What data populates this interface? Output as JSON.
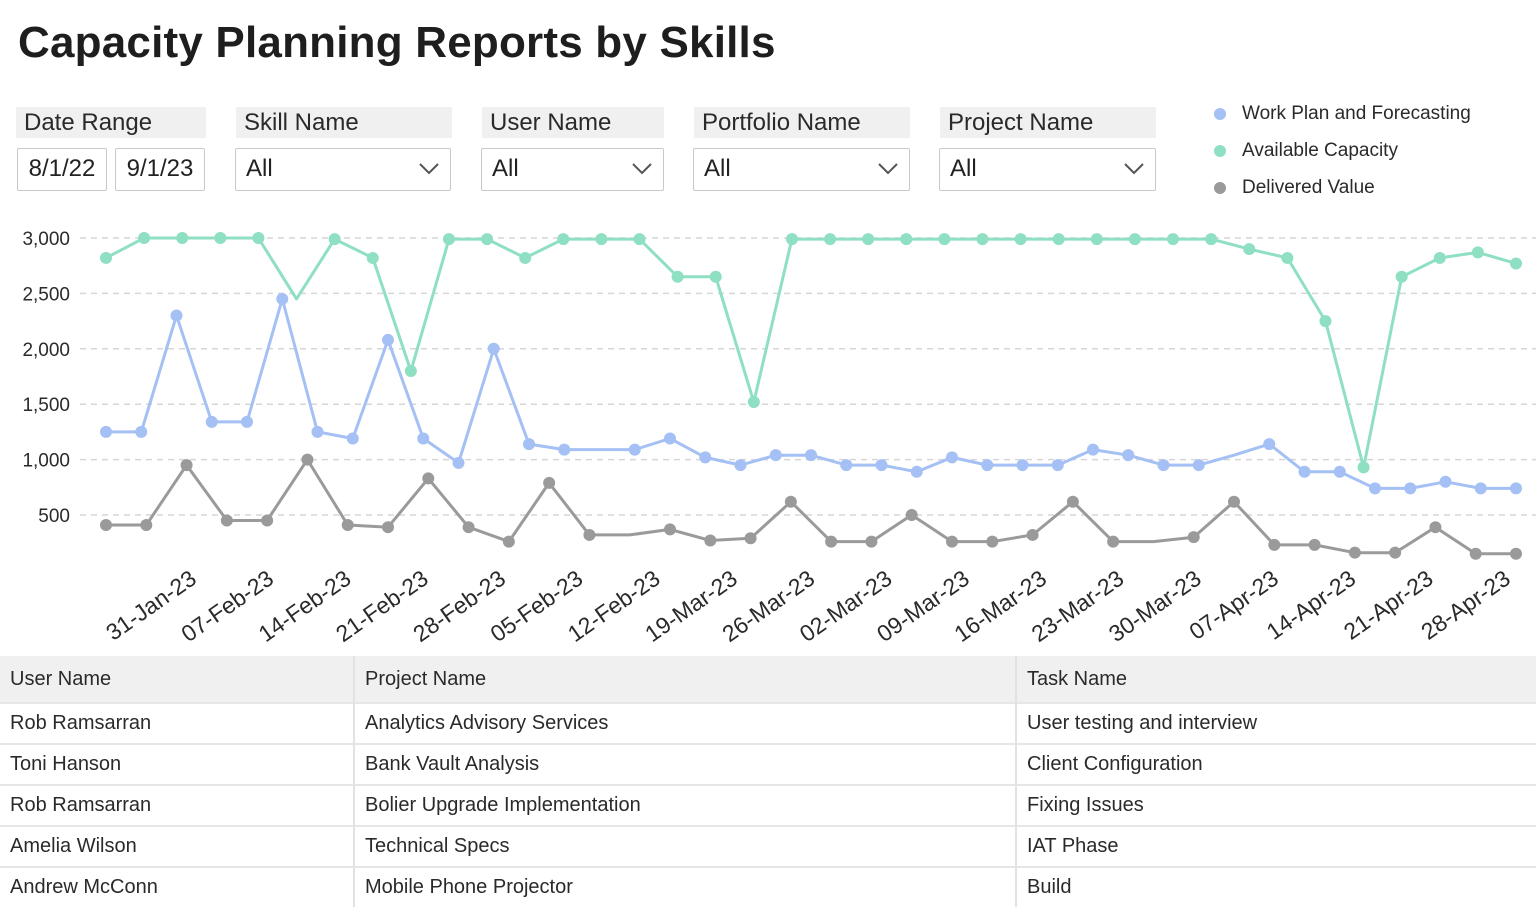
{
  "title": "Capacity Planning Reports by Skills",
  "filters": {
    "date_range": {
      "label": "Date Range",
      "start": "8/1/22",
      "end": "9/1/23"
    },
    "skill_name": {
      "label": "Skill Name",
      "value": "All"
    },
    "user_name": {
      "label": "User Name",
      "value": "All"
    },
    "portfolio_name": {
      "label": "Portfolio Name",
      "value": "All"
    },
    "project_name": {
      "label": "Project Name",
      "value": "All"
    }
  },
  "legend": [
    {
      "label": "Work Plan and Forecasting",
      "color": "#a4c0f4"
    },
    {
      "label": "Available Capacity",
      "color": "#8fdfc3"
    },
    {
      "label": "Delivered Value",
      "color": "#9a9a9a"
    }
  ],
  "chart_data": {
    "type": "line",
    "y_ticks": [
      "3,000",
      "2,500",
      "2,000",
      "1,500",
      "1,000",
      "500"
    ],
    "y_tick_values": [
      3000,
      2500,
      2000,
      1500,
      1000,
      500
    ],
    "ylim": [
      0,
      3000
    ],
    "grid": "horizontal-dashed",
    "x_tick_labels": [
      "31-Jan-23",
      "07-Feb-23",
      "14-Feb-23",
      "21-Feb-23",
      "28-Feb-23",
      "05-Feb-23",
      "12-Feb-23",
      "19-Mar-23",
      "26-Mar-23",
      "02-Mar-23",
      "09-Mar-23",
      "16-Mar-23",
      "23-Mar-23",
      "30-Mar-23",
      "07-Apr-23",
      "14-Apr-23",
      "21-Apr-23",
      "28-Apr-23"
    ],
    "series": [
      {
        "name": "Available Capacity",
        "color": "#8fdfc3",
        "points": [
          [
            0,
            2820,
            1
          ],
          [
            1,
            3000,
            1
          ],
          [
            2,
            3000,
            1
          ],
          [
            3,
            3000,
            1
          ],
          [
            4,
            3000,
            1
          ],
          [
            5,
            2450,
            0
          ],
          [
            6,
            2990,
            1
          ],
          [
            7,
            2820,
            1
          ],
          [
            8,
            1800,
            1
          ],
          [
            9,
            2990,
            1
          ],
          [
            10,
            2990,
            1
          ],
          [
            11,
            2820,
            1
          ],
          [
            12,
            2990,
            1
          ],
          [
            13,
            2990,
            1
          ],
          [
            14,
            2990,
            1
          ],
          [
            15,
            2650,
            1
          ],
          [
            16,
            2650,
            1
          ],
          [
            17,
            1520,
            1
          ],
          [
            18,
            2990,
            1
          ],
          [
            19,
            2990,
            1
          ],
          [
            20,
            2990,
            1
          ],
          [
            21,
            2990,
            1
          ],
          [
            22,
            2990,
            1
          ],
          [
            23,
            2990,
            1
          ],
          [
            24,
            2990,
            1
          ],
          [
            25,
            2990,
            1
          ],
          [
            26,
            2990,
            1
          ],
          [
            27,
            2990,
            1
          ],
          [
            28,
            2990,
            1
          ],
          [
            29,
            2990,
            1
          ],
          [
            30,
            2900,
            1
          ],
          [
            31,
            2820,
            1
          ],
          [
            32,
            2250,
            1
          ],
          [
            33,
            930,
            1
          ],
          [
            34,
            2650,
            1
          ],
          [
            35,
            2820,
            1
          ],
          [
            36,
            2870,
            1
          ],
          [
            37,
            2770,
            1
          ]
        ]
      },
      {
        "name": "Work Plan and Forecasting",
        "color": "#a4c0f4",
        "points": [
          [
            0,
            1250,
            1
          ],
          [
            1,
            1250,
            1
          ],
          [
            2,
            2300,
            1
          ],
          [
            3,
            1340,
            1
          ],
          [
            4,
            1340,
            1
          ],
          [
            5,
            2450,
            1
          ],
          [
            6,
            1250,
            1
          ],
          [
            7,
            1190,
            1
          ],
          [
            8,
            2080,
            1
          ],
          [
            9,
            1190,
            1
          ],
          [
            10,
            970,
            1
          ],
          [
            11,
            2000,
            1
          ],
          [
            12,
            1140,
            1
          ],
          [
            13,
            1090,
            1
          ],
          [
            14,
            1090,
            0
          ],
          [
            15,
            1090,
            1
          ],
          [
            16,
            1190,
            1
          ],
          [
            17,
            1020,
            1
          ],
          [
            18,
            950,
            1
          ],
          [
            19,
            1040,
            1
          ],
          [
            20,
            1040,
            1
          ],
          [
            21,
            950,
            1
          ],
          [
            22,
            950,
            1
          ],
          [
            23,
            890,
            1
          ],
          [
            24,
            1020,
            1
          ],
          [
            25,
            950,
            1
          ],
          [
            26,
            950,
            1
          ],
          [
            27,
            950,
            1
          ],
          [
            28,
            1090,
            1
          ],
          [
            29,
            1040,
            1
          ],
          [
            30,
            950,
            1
          ],
          [
            31,
            950,
            1
          ],
          [
            32,
            1040,
            0
          ],
          [
            33,
            1140,
            1
          ],
          [
            34,
            890,
            1
          ],
          [
            35,
            890,
            1
          ],
          [
            36,
            740,
            1
          ],
          [
            37,
            740,
            1
          ],
          [
            38,
            800,
            1
          ],
          [
            39,
            740,
            1
          ],
          [
            40,
            740,
            1
          ]
        ]
      },
      {
        "name": "Delivered Value",
        "color": "#9a9a9a",
        "points": [
          [
            0,
            410,
            1
          ],
          [
            1,
            410,
            1
          ],
          [
            2,
            950,
            1
          ],
          [
            3,
            450,
            1
          ],
          [
            4,
            450,
            1
          ],
          [
            5,
            1000,
            1
          ],
          [
            6,
            410,
            1
          ],
          [
            7,
            390,
            1
          ],
          [
            8,
            830,
            1
          ],
          [
            9,
            390,
            1
          ],
          [
            10,
            260,
            1
          ],
          [
            11,
            790,
            1
          ],
          [
            12,
            320,
            1
          ],
          [
            13,
            320,
            0
          ],
          [
            14,
            370,
            1
          ],
          [
            15,
            270,
            1
          ],
          [
            16,
            290,
            1
          ],
          [
            17,
            620,
            1
          ],
          [
            18,
            260,
            1
          ],
          [
            19,
            260,
            1
          ],
          [
            20,
            500,
            1
          ],
          [
            21,
            260,
            1
          ],
          [
            22,
            260,
            1
          ],
          [
            23,
            320,
            1
          ],
          [
            24,
            620,
            1
          ],
          [
            25,
            260,
            1
          ],
          [
            26,
            260,
            0
          ],
          [
            27,
            300,
            1
          ],
          [
            28,
            620,
            1
          ],
          [
            29,
            230,
            1
          ],
          [
            30,
            230,
            1
          ],
          [
            31,
            160,
            1
          ],
          [
            32,
            160,
            1
          ],
          [
            33,
            390,
            1
          ],
          [
            34,
            150,
            1
          ],
          [
            35,
            150,
            1
          ]
        ]
      }
    ]
  },
  "table": {
    "headers": [
      "User Name",
      "Project Name",
      "Task Name"
    ],
    "rows": [
      [
        "Rob Ramsarran",
        "Analytics Advisory Services",
        "User testing and interview"
      ],
      [
        "Toni Hanson",
        "Bank Vault Analysis",
        "Client Configuration"
      ],
      [
        "Rob Ramsarran",
        "Bolier Upgrade Implementation",
        "Fixing Issues"
      ],
      [
        "Amelia Wilson",
        "Technical Specs",
        "IAT Phase"
      ],
      [
        "Andrew McConn",
        "Mobile Phone Projector",
        "Build"
      ]
    ]
  }
}
